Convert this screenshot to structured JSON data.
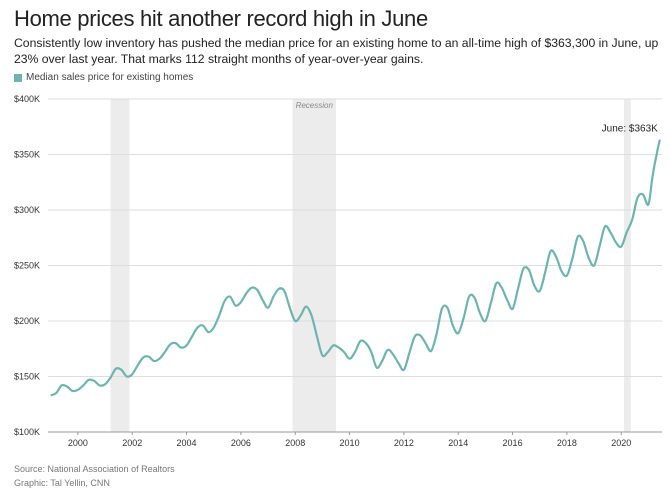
{
  "header": {
    "title": "Home prices hit another record high in June",
    "subtitle": "Consistently low inventory has pushed the median price for an existing home to an all-time high of $363,300 in June, up 23% over last year. That marks 112 straight months of year-over-year gains."
  },
  "footer": {
    "source": "Source: National Association of Realtors",
    "graphic": "Graphic: Tal Yellin, CNN"
  },
  "colors": {
    "line": "#6db5ac",
    "recession": "#ececec",
    "grid": "#dddddd",
    "text": "#333333"
  },
  "chart_data": {
    "type": "line",
    "title": "Home prices hit another record high in June",
    "xlabel": "",
    "ylabel": "",
    "xlim": [
      1998.9,
      2021.5
    ],
    "ylim": [
      100000,
      400000
    ],
    "x_ticks": [
      2000,
      2002,
      2004,
      2006,
      2008,
      2010,
      2012,
      2014,
      2016,
      2018,
      2020
    ],
    "y_ticks": [
      {
        "value": 100000,
        "label": "$100K"
      },
      {
        "value": 150000,
        "label": "$150K"
      },
      {
        "value": 200000,
        "label": "$200K"
      },
      {
        "value": 250000,
        "label": "$250K"
      },
      {
        "value": 300000,
        "label": "$300K"
      },
      {
        "value": 350000,
        "label": "$350K"
      },
      {
        "value": 400000,
        "label": "$400K"
      }
    ],
    "grid": true,
    "legend_position": "top-left",
    "recessions": [
      {
        "start": 2001.2,
        "end": 2001.9,
        "label": ""
      },
      {
        "start": 2007.9,
        "end": 2009.5,
        "label": "Recession"
      },
      {
        "start": 2020.1,
        "end": 2020.35,
        "label": ""
      }
    ],
    "annotation": {
      "x": 2021.42,
      "y": 363300,
      "text": "June: $363K"
    },
    "series": [
      {
        "name": "Median sales price for existing homes",
        "points": [
          [
            1999.0,
            133000
          ],
          [
            1999.2,
            135000
          ],
          [
            1999.4,
            142000
          ],
          [
            1999.6,
            141000
          ],
          [
            1999.8,
            137000
          ],
          [
            2000.0,
            138000
          ],
          [
            2000.2,
            142000
          ],
          [
            2000.4,
            147000
          ],
          [
            2000.6,
            146000
          ],
          [
            2000.8,
            142000
          ],
          [
            2001.0,
            143000
          ],
          [
            2001.2,
            149000
          ],
          [
            2001.4,
            157000
          ],
          [
            2001.6,
            156000
          ],
          [
            2001.8,
            150000
          ],
          [
            2002.0,
            152000
          ],
          [
            2002.2,
            160000
          ],
          [
            2002.4,
            167000
          ],
          [
            2002.6,
            168000
          ],
          [
            2002.8,
            164000
          ],
          [
            2003.0,
            166000
          ],
          [
            2003.2,
            172000
          ],
          [
            2003.4,
            179000
          ],
          [
            2003.6,
            180000
          ],
          [
            2003.8,
            176000
          ],
          [
            2004.0,
            178000
          ],
          [
            2004.2,
            186000
          ],
          [
            2004.4,
            194000
          ],
          [
            2004.6,
            196000
          ],
          [
            2004.8,
            190000
          ],
          [
            2005.0,
            194000
          ],
          [
            2005.2,
            205000
          ],
          [
            2005.4,
            218000
          ],
          [
            2005.6,
            222000
          ],
          [
            2005.8,
            214000
          ],
          [
            2006.0,
            217000
          ],
          [
            2006.2,
            225000
          ],
          [
            2006.4,
            230000
          ],
          [
            2006.6,
            228000
          ],
          [
            2006.8,
            219000
          ],
          [
            2007.0,
            212000
          ],
          [
            2007.2,
            222000
          ],
          [
            2007.4,
            229000
          ],
          [
            2007.6,
            227000
          ],
          [
            2007.8,
            212000
          ],
          [
            2008.0,
            200000
          ],
          [
            2008.2,
            205000
          ],
          [
            2008.4,
            213000
          ],
          [
            2008.6,
            205000
          ],
          [
            2008.8,
            186000
          ],
          [
            2009.0,
            169000
          ],
          [
            2009.2,
            172000
          ],
          [
            2009.4,
            178000
          ],
          [
            2009.6,
            176000
          ],
          [
            2009.8,
            172000
          ],
          [
            2010.0,
            166000
          ],
          [
            2010.2,
            172000
          ],
          [
            2010.4,
            182000
          ],
          [
            2010.6,
            180000
          ],
          [
            2010.8,
            172000
          ],
          [
            2011.0,
            158000
          ],
          [
            2011.2,
            164000
          ],
          [
            2011.4,
            174000
          ],
          [
            2011.6,
            170000
          ],
          [
            2011.8,
            162000
          ],
          [
            2012.0,
            156000
          ],
          [
            2012.2,
            171000
          ],
          [
            2012.4,
            186000
          ],
          [
            2012.6,
            187000
          ],
          [
            2012.8,
            180000
          ],
          [
            2013.0,
            173000
          ],
          [
            2013.2,
            188000
          ],
          [
            2013.4,
            211000
          ],
          [
            2013.6,
            212000
          ],
          [
            2013.8,
            196000
          ],
          [
            2014.0,
            189000
          ],
          [
            2014.2,
            203000
          ],
          [
            2014.4,
            222000
          ],
          [
            2014.6,
            221000
          ],
          [
            2014.8,
            207000
          ],
          [
            2015.0,
            200000
          ],
          [
            2015.2,
            216000
          ],
          [
            2015.4,
            234000
          ],
          [
            2015.6,
            230000
          ],
          [
            2015.8,
            219000
          ],
          [
            2016.0,
            211000
          ],
          [
            2016.2,
            229000
          ],
          [
            2016.4,
            247000
          ],
          [
            2016.6,
            246000
          ],
          [
            2016.8,
            232000
          ],
          [
            2017.0,
            227000
          ],
          [
            2017.2,
            244000
          ],
          [
            2017.4,
            263000
          ],
          [
            2017.6,
            258000
          ],
          [
            2017.8,
            245000
          ],
          [
            2018.0,
            241000
          ],
          [
            2018.2,
            256000
          ],
          [
            2018.4,
            276000
          ],
          [
            2018.6,
            272000
          ],
          [
            2018.8,
            257000
          ],
          [
            2019.0,
            250000
          ],
          [
            2019.2,
            267000
          ],
          [
            2019.4,
            285000
          ],
          [
            2019.6,
            280000
          ],
          [
            2019.8,
            271000
          ],
          [
            2020.0,
            267000
          ],
          [
            2020.2,
            280000
          ],
          [
            2020.4,
            291000
          ],
          [
            2020.6,
            311000
          ],
          [
            2020.8,
            314000
          ],
          [
            2021.0,
            305000
          ],
          [
            2021.15,
            330000
          ],
          [
            2021.3,
            350000
          ],
          [
            2021.42,
            363300
          ]
        ]
      }
    ]
  }
}
